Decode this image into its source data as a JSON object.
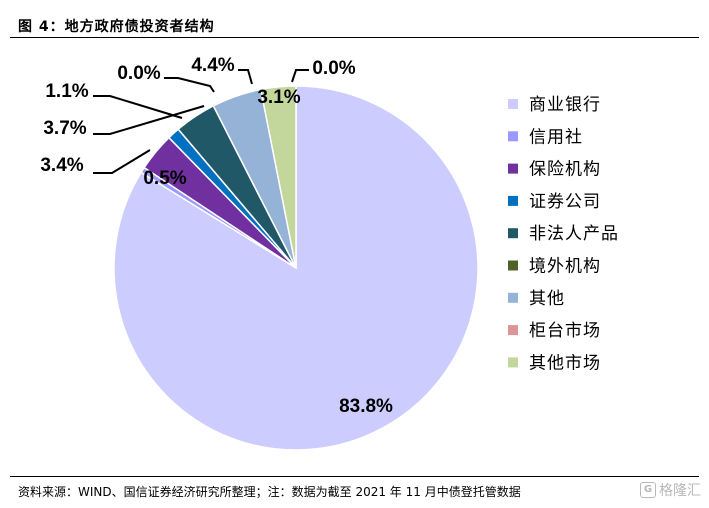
{
  "figure": {
    "title": "图 4：地方政府债投资者结构",
    "source": "资料来源：WIND、国信证券经济研究所整理；注：数据为截至 2021 年 11 月中债登托管数据",
    "watermark": "格隆汇"
  },
  "chart_data": {
    "type": "pie",
    "title": "",
    "legend_position": "right",
    "slices": [
      {
        "name": "商业银行",
        "value": 83.8,
        "label": "83.8%",
        "color": "#CCCCFF"
      },
      {
        "name": "信用社",
        "value": 0.5,
        "label": "0.5%",
        "color": "#9999FF"
      },
      {
        "name": "保险机构",
        "value": 3.4,
        "label": "3.4%",
        "color": "#7030A0"
      },
      {
        "name": "证券公司",
        "value": 1.1,
        "label": "1.1%",
        "color": "#0070C0"
      },
      {
        "name": "非法人产品",
        "value": 3.7,
        "label": "3.7%",
        "color": "#215868"
      },
      {
        "name": "境外机构",
        "value": 0.0,
        "label": "0.0%",
        "color": "#4F6228"
      },
      {
        "name": "其他",
        "value": 4.4,
        "label": "4.4%",
        "color": "#95B3D7"
      },
      {
        "name": "柜台市场",
        "value": 0.0,
        "label": "0.0%",
        "color": "#D99694"
      },
      {
        "name": "其他市场",
        "value": 3.1,
        "label": "3.1%",
        "color": "#C3D69B"
      }
    ]
  }
}
